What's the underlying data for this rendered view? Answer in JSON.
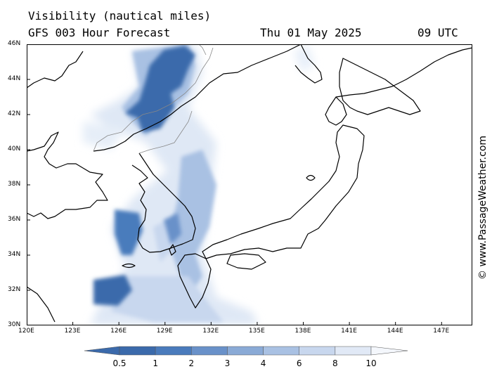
{
  "header": {
    "title": "Visibility (nautical miles)",
    "subtitle": "GFS 003 Hour Forecast",
    "date": "Thu 01 May 2025",
    "time": "09 UTC"
  },
  "credit": "© www.PassageWeather.com",
  "axes": {
    "lat_labels": [
      "46N",
      "44N",
      "42N",
      "40N",
      "38N",
      "36N",
      "34N",
      "32N",
      "30N"
    ],
    "lon_labels": [
      "120E",
      "123E",
      "126E",
      "129E",
      "132E",
      "135E",
      "138E",
      "141E",
      "144E",
      "147E"
    ],
    "lon_range": [
      120,
      149
    ],
    "lat_range": [
      30,
      46
    ]
  },
  "legend": {
    "labels": [
      "0.5",
      "1",
      "2",
      "3",
      "4",
      "6",
      "8",
      "10"
    ],
    "colors": [
      "#3b6aab",
      "#4a7bbc",
      "#6991c9",
      "#8aaad6",
      "#a9c1e3",
      "#c8d7ee",
      "#e1e9f6",
      "#f4f7fc"
    ]
  },
  "colors": {
    "land": "#ffffff",
    "sea": "#ffffff",
    "coast": "#000000",
    "border": "#888888"
  }
}
